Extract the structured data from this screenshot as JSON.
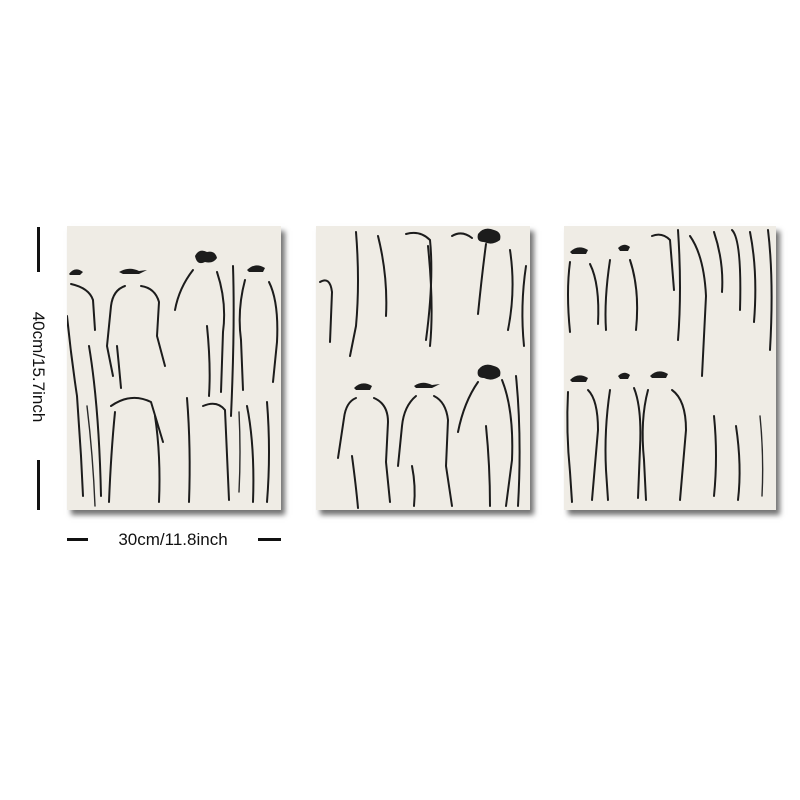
{
  "product": {
    "panel_count": 3,
    "canvas_color": "#efece5",
    "artwork_icon": "figure-sketch-icon"
  },
  "dimensions": {
    "height_label": "40cm/15.7inch",
    "width_label": "30cm/11.8inch"
  }
}
